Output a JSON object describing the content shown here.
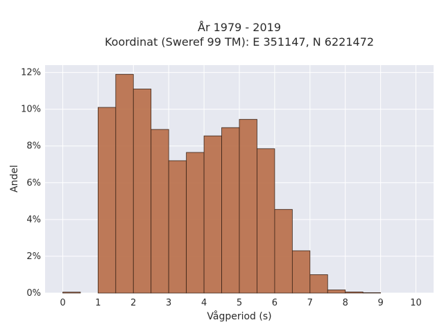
{
  "chart_data": {
    "type": "bar",
    "title_line1": "År 1979 - 2019",
    "title_line2": "Koordinat (Sweref 99 TM): E 351147, N 6221472",
    "xlabel": "Vågperiod (s)",
    "ylabel": "Andel",
    "xlim": [
      -0.5,
      10.5
    ],
    "ylim": [
      0,
      12.4
    ],
    "x_ticks": [
      0,
      1,
      2,
      3,
      4,
      5,
      6,
      7,
      8,
      9,
      10
    ],
    "y_ticks": [
      0,
      2,
      4,
      6,
      8,
      10,
      12
    ],
    "y_tick_suffix": "%",
    "grid": true,
    "bin_width": 0.5,
    "bins": [
      {
        "start": 0.0,
        "value": 0.05
      },
      {
        "start": 1.0,
        "value": 10.1
      },
      {
        "start": 1.5,
        "value": 11.9
      },
      {
        "start": 2.0,
        "value": 11.1
      },
      {
        "start": 2.5,
        "value": 8.9
      },
      {
        "start": 3.0,
        "value": 7.2
      },
      {
        "start": 3.5,
        "value": 7.65
      },
      {
        "start": 4.0,
        "value": 8.55
      },
      {
        "start": 4.5,
        "value": 9.0
      },
      {
        "start": 5.0,
        "value": 9.45
      },
      {
        "start": 5.5,
        "value": 7.85
      },
      {
        "start": 6.0,
        "value": 4.55
      },
      {
        "start": 6.5,
        "value": 2.3
      },
      {
        "start": 7.0,
        "value": 1.0
      },
      {
        "start": 7.5,
        "value": 0.17
      },
      {
        "start": 8.0,
        "value": 0.06
      },
      {
        "start": 8.5,
        "value": 0.02
      }
    ],
    "colors": {
      "bar": "#b86d47",
      "plot_bg": "#e6e8f0",
      "grid": "#ffffff"
    }
  }
}
